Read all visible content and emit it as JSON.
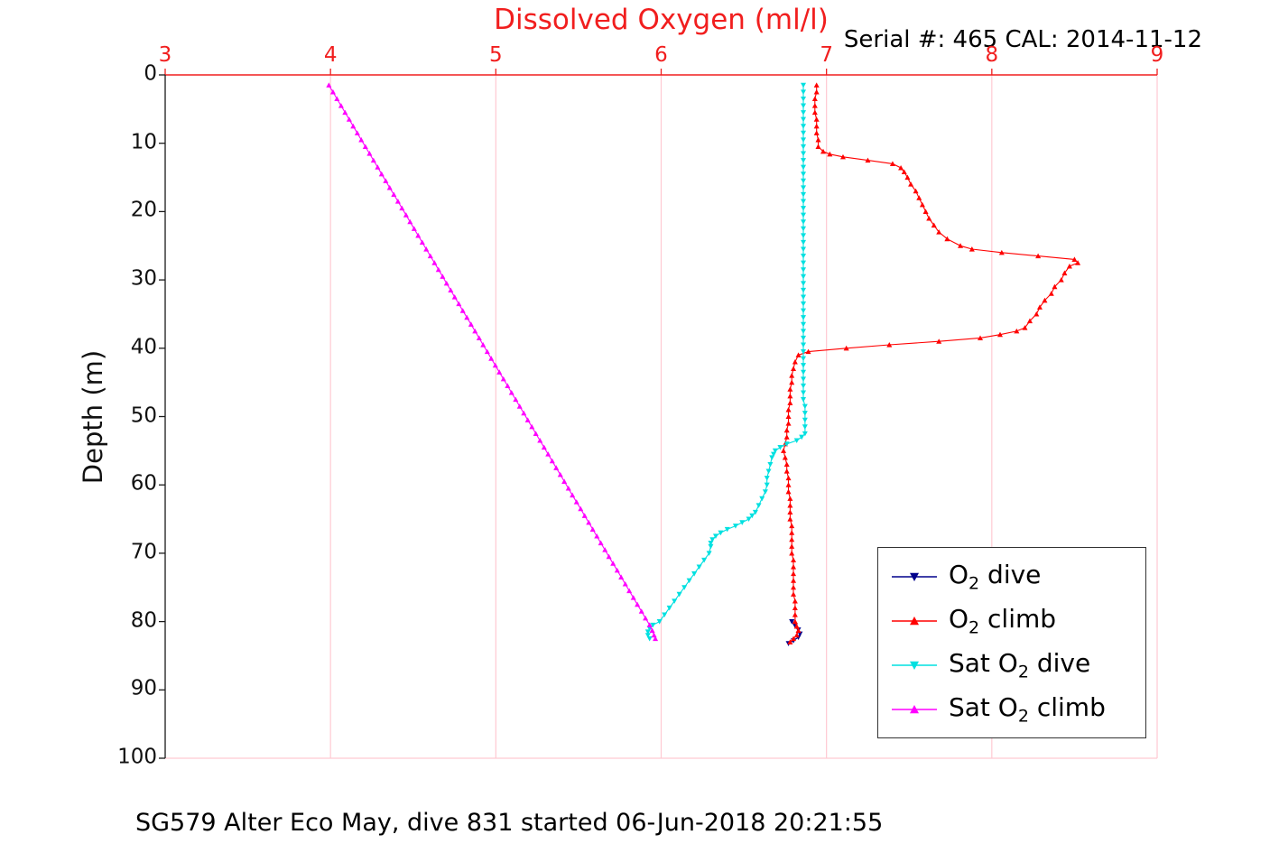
{
  "title": "Dissolved Oxygen (ml/l)",
  "serial_text": "Serial #: 465  CAL: 2014-11-12",
  "caption": "SG579 Alter Eco May, dive 831 started 06-Jun-2018 20:21:55",
  "colors": {
    "title_red": "#f11e1e",
    "tick_red": "#f11e1e",
    "grid_pink": "#ffc9d2",
    "axis_black": "#1a1a1a",
    "o2_dive_blue": "#00008b",
    "o2_climb_red": "#ff0000",
    "sat_dive_cyan": "#00e0e0",
    "sat_climb_magenta": "#ff00ff"
  },
  "legend": {
    "items": [
      {
        "pre": "O",
        "sub": "2",
        "post": " dive",
        "series": 0
      },
      {
        "pre": "O",
        "sub": "2",
        "post": " climb",
        "series": 1
      },
      {
        "pre": "Sat O",
        "sub": "2",
        "post": " dive",
        "series": 2
      },
      {
        "pre": "Sat O",
        "sub": "2",
        "post": " climb",
        "series": 3
      }
    ]
  },
  "chart_data": {
    "type": "line",
    "title": "Dissolved Oxygen (ml/l)",
    "xlabel": "",
    "ylabel": "Depth (m)",
    "x_axis_location": "top",
    "xlim": [
      3,
      9
    ],
    "ylim": [
      0,
      100
    ],
    "y_direction": "reversed",
    "xticks": [
      3,
      4,
      5,
      6,
      7,
      8,
      9
    ],
    "yticks": [
      0,
      10,
      20,
      30,
      40,
      50,
      60,
      70,
      80,
      90,
      100
    ],
    "grid": "vertical gridlines at x ticks, light pink",
    "legend_position": "inside lower right",
    "series": [
      {
        "name": "O2 dive",
        "color": "#00008b",
        "marker": "v",
        "points": [
          [
            6.79,
            80
          ],
          [
            6.81,
            80.6
          ],
          [
            6.83,
            81.2
          ],
          [
            6.84,
            81.8
          ],
          [
            6.83,
            82.3
          ],
          [
            6.8,
            82.8
          ],
          [
            6.77,
            83.2
          ]
        ]
      },
      {
        "name": "O2 climb",
        "color": "#ff0000",
        "marker": "^",
        "points": [
          [
            6.94,
            1.5
          ],
          [
            6.94,
            2.5
          ],
          [
            6.93,
            3.5
          ],
          [
            6.93,
            4.5
          ],
          [
            6.93,
            5.5
          ],
          [
            6.94,
            6.5
          ],
          [
            6.94,
            7.5
          ],
          [
            6.94,
            8.5
          ],
          [
            6.95,
            9.5
          ],
          [
            6.95,
            10.5
          ],
          [
            6.98,
            11.2
          ],
          [
            7.02,
            11.6
          ],
          [
            7.1,
            12
          ],
          [
            7.25,
            12.5
          ],
          [
            7.4,
            13
          ],
          [
            7.45,
            13.6
          ],
          [
            7.47,
            14.2
          ],
          [
            7.49,
            15
          ],
          [
            7.51,
            16
          ],
          [
            7.54,
            17
          ],
          [
            7.56,
            18
          ],
          [
            7.58,
            19
          ],
          [
            7.6,
            20
          ],
          [
            7.62,
            21
          ],
          [
            7.65,
            22
          ],
          [
            7.68,
            23
          ],
          [
            7.73,
            24
          ],
          [
            7.81,
            25
          ],
          [
            7.88,
            25.5
          ],
          [
            8.06,
            26
          ],
          [
            8.28,
            26.5
          ],
          [
            8.5,
            27
          ],
          [
            8.52,
            27.5
          ],
          [
            8.47,
            28
          ],
          [
            8.44,
            29
          ],
          [
            8.42,
            30
          ],
          [
            8.38,
            31
          ],
          [
            8.36,
            32
          ],
          [
            8.32,
            33
          ],
          [
            8.29,
            34
          ],
          [
            8.27,
            35
          ],
          [
            8.23,
            36
          ],
          [
            8.2,
            37
          ],
          [
            8.15,
            37.5
          ],
          [
            8.05,
            38
          ],
          [
            7.93,
            38.5
          ],
          [
            7.68,
            39
          ],
          [
            7.38,
            39.5
          ],
          [
            7.12,
            40
          ],
          [
            6.89,
            40.5
          ],
          [
            6.83,
            41
          ],
          [
            6.81,
            42
          ],
          [
            6.8,
            43
          ],
          [
            6.79,
            44
          ],
          [
            6.79,
            45
          ],
          [
            6.78,
            46
          ],
          [
            6.78,
            47
          ],
          [
            6.78,
            48
          ],
          [
            6.77,
            49
          ],
          [
            6.77,
            50
          ],
          [
            6.77,
            51
          ],
          [
            6.76,
            52
          ],
          [
            6.76,
            53
          ],
          [
            6.75,
            54
          ],
          [
            6.74,
            55
          ],
          [
            6.75,
            56
          ],
          [
            6.76,
            57
          ],
          [
            6.76,
            58
          ],
          [
            6.77,
            59
          ],
          [
            6.77,
            60
          ],
          [
            6.77,
            61
          ],
          [
            6.78,
            62
          ],
          [
            6.78,
            63
          ],
          [
            6.78,
            64
          ],
          [
            6.78,
            65
          ],
          [
            6.79,
            66
          ],
          [
            6.79,
            67
          ],
          [
            6.79,
            68
          ],
          [
            6.79,
            69
          ],
          [
            6.79,
            70
          ],
          [
            6.8,
            71
          ],
          [
            6.8,
            72
          ],
          [
            6.8,
            73
          ],
          [
            6.8,
            74
          ],
          [
            6.8,
            75
          ],
          [
            6.8,
            76
          ],
          [
            6.81,
            77
          ],
          [
            6.81,
            78
          ],
          [
            6.81,
            79
          ],
          [
            6.81,
            80
          ],
          [
            6.82,
            80.7
          ],
          [
            6.83,
            81.3
          ],
          [
            6.82,
            82
          ],
          [
            6.8,
            82.5
          ],
          [
            6.78,
            83
          ]
        ]
      },
      {
        "name": "Sat O2 dive",
        "color": "#00e0e0",
        "marker": "v",
        "points": [
          [
            6.86,
            1.5
          ],
          [
            6.86,
            2.5
          ],
          [
            6.86,
            3.5
          ],
          [
            6.86,
            4.5
          ],
          [
            6.86,
            5.5
          ],
          [
            6.86,
            6.5
          ],
          [
            6.86,
            7.5
          ],
          [
            6.86,
            8.5
          ],
          [
            6.86,
            9.5
          ],
          [
            6.86,
            10.5
          ],
          [
            6.86,
            11.5
          ],
          [
            6.86,
            12.5
          ],
          [
            6.86,
            13.5
          ],
          [
            6.86,
            14.5
          ],
          [
            6.86,
            15.5
          ],
          [
            6.86,
            16.5
          ],
          [
            6.86,
            17.5
          ],
          [
            6.86,
            18.5
          ],
          [
            6.86,
            19.5
          ],
          [
            6.86,
            20.5
          ],
          [
            6.86,
            21.5
          ],
          [
            6.86,
            22.5
          ],
          [
            6.86,
            23.5
          ],
          [
            6.86,
            24.5
          ],
          [
            6.86,
            25.5
          ],
          [
            6.86,
            26.5
          ],
          [
            6.86,
            27.5
          ],
          [
            6.86,
            28.5
          ],
          [
            6.86,
            29.5
          ],
          [
            6.86,
            30.5
          ],
          [
            6.86,
            31.5
          ],
          [
            6.86,
            32.5
          ],
          [
            6.86,
            33.5
          ],
          [
            6.86,
            34.5
          ],
          [
            6.86,
            35.5
          ],
          [
            6.86,
            36.5
          ],
          [
            6.86,
            37.5
          ],
          [
            6.86,
            38.5
          ],
          [
            6.86,
            39.5
          ],
          [
            6.86,
            40.5
          ],
          [
            6.86,
            41.5
          ],
          [
            6.86,
            42.5
          ],
          [
            6.86,
            43.5
          ],
          [
            6.86,
            44.5
          ],
          [
            6.86,
            45.5
          ],
          [
            6.86,
            46.5
          ],
          [
            6.86,
            47.5
          ],
          [
            6.87,
            48.5
          ],
          [
            6.87,
            49.5
          ],
          [
            6.87,
            50.5
          ],
          [
            6.87,
            51.5
          ],
          [
            6.87,
            52.5
          ],
          [
            6.85,
            53
          ],
          [
            6.82,
            53.5
          ],
          [
            6.76,
            54
          ],
          [
            6.72,
            54.5
          ],
          [
            6.69,
            55
          ],
          [
            6.68,
            55.5
          ],
          [
            6.67,
            56
          ],
          [
            6.66,
            57
          ],
          [
            6.65,
            58
          ],
          [
            6.64,
            59
          ],
          [
            6.64,
            60
          ],
          [
            6.63,
            61
          ],
          [
            6.61,
            62
          ],
          [
            6.59,
            63
          ],
          [
            6.57,
            64
          ],
          [
            6.55,
            64.5
          ],
          [
            6.53,
            65
          ],
          [
            6.49,
            65.5
          ],
          [
            6.45,
            66
          ],
          [
            6.4,
            66.5
          ],
          [
            6.36,
            67
          ],
          [
            6.33,
            67.5
          ],
          [
            6.31,
            68
          ],
          [
            6.3,
            68.5
          ],
          [
            6.3,
            69
          ],
          [
            6.29,
            70
          ],
          [
            6.26,
            71
          ],
          [
            6.23,
            72
          ],
          [
            6.2,
            73
          ],
          [
            6.17,
            74
          ],
          [
            6.14,
            75
          ],
          [
            6.11,
            76
          ],
          [
            6.08,
            77
          ],
          [
            6.05,
            78
          ],
          [
            6.02,
            79
          ],
          [
            5.99,
            80
          ],
          [
            5.95,
            80.5
          ],
          [
            5.93,
            81
          ],
          [
            5.92,
            81.5
          ],
          [
            5.92,
            82
          ],
          [
            5.93,
            82.5
          ]
        ]
      },
      {
        "name": "Sat O2 climb",
        "color": "#ff00ff",
        "marker": "^",
        "points": [
          [
            3.99,
            1.5
          ],
          [
            4.015,
            2.5
          ],
          [
            4.039,
            3.5
          ],
          [
            4.064,
            4.5
          ],
          [
            4.088,
            5.5
          ],
          [
            4.113,
            6.5
          ],
          [
            4.137,
            7.5
          ],
          [
            4.162,
            8.5
          ],
          [
            4.186,
            9.5
          ],
          [
            4.211,
            10.5
          ],
          [
            4.236,
            11.5
          ],
          [
            4.26,
            12.5
          ],
          [
            4.285,
            13.5
          ],
          [
            4.309,
            14.5
          ],
          [
            4.334,
            15.5
          ],
          [
            4.358,
            16.5
          ],
          [
            4.383,
            17.5
          ],
          [
            4.408,
            18.5
          ],
          [
            4.432,
            19.5
          ],
          [
            4.457,
            20.5
          ],
          [
            4.481,
            21.5
          ],
          [
            4.506,
            22.5
          ],
          [
            4.53,
            23.5
          ],
          [
            4.555,
            24.5
          ],
          [
            4.579,
            25.5
          ],
          [
            4.604,
            26.5
          ],
          [
            4.629,
            27.5
          ],
          [
            4.653,
            28.5
          ],
          [
            4.678,
            29.5
          ],
          [
            4.702,
            30.5
          ],
          [
            4.727,
            31.5
          ],
          [
            4.751,
            32.5
          ],
          [
            4.776,
            33.5
          ],
          [
            4.8,
            34.5
          ],
          [
            4.825,
            35.5
          ],
          [
            4.85,
            36.5
          ],
          [
            4.874,
            37.5
          ],
          [
            4.899,
            38.5
          ],
          [
            4.923,
            39.5
          ],
          [
            4.948,
            40.5
          ],
          [
            4.972,
            41.5
          ],
          [
            4.997,
            42.5
          ],
          [
            5.021,
            43.5
          ],
          [
            5.046,
            44.5
          ],
          [
            5.071,
            45.5
          ],
          [
            5.095,
            46.5
          ],
          [
            5.12,
            47.5
          ],
          [
            5.144,
            48.5
          ],
          [
            5.169,
            49.5
          ],
          [
            5.193,
            50.5
          ],
          [
            5.218,
            51.5
          ],
          [
            5.242,
            52.5
          ],
          [
            5.267,
            53.5
          ],
          [
            5.292,
            54.5
          ],
          [
            5.316,
            55.5
          ],
          [
            5.341,
            56.5
          ],
          [
            5.365,
            57.5
          ],
          [
            5.39,
            58.5
          ],
          [
            5.414,
            59.5
          ],
          [
            5.439,
            60.5
          ],
          [
            5.463,
            61.5
          ],
          [
            5.488,
            62.5
          ],
          [
            5.513,
            63.5
          ],
          [
            5.537,
            64.5
          ],
          [
            5.562,
            65.5
          ],
          [
            5.586,
            66.5
          ],
          [
            5.611,
            67.5
          ],
          [
            5.635,
            68.5
          ],
          [
            5.66,
            69.5
          ],
          [
            5.684,
            70.5
          ],
          [
            5.709,
            71.5
          ],
          [
            5.734,
            72.5
          ],
          [
            5.758,
            73.5
          ],
          [
            5.783,
            74.5
          ],
          [
            5.807,
            75.5
          ],
          [
            5.832,
            76.5
          ],
          [
            5.856,
            77.5
          ],
          [
            5.881,
            78.5
          ],
          [
            5.905,
            79.5
          ],
          [
            5.93,
            80.5
          ],
          [
            5.946,
            81.3
          ],
          [
            5.957,
            82
          ],
          [
            5.965,
            82.5
          ]
        ]
      }
    ]
  }
}
